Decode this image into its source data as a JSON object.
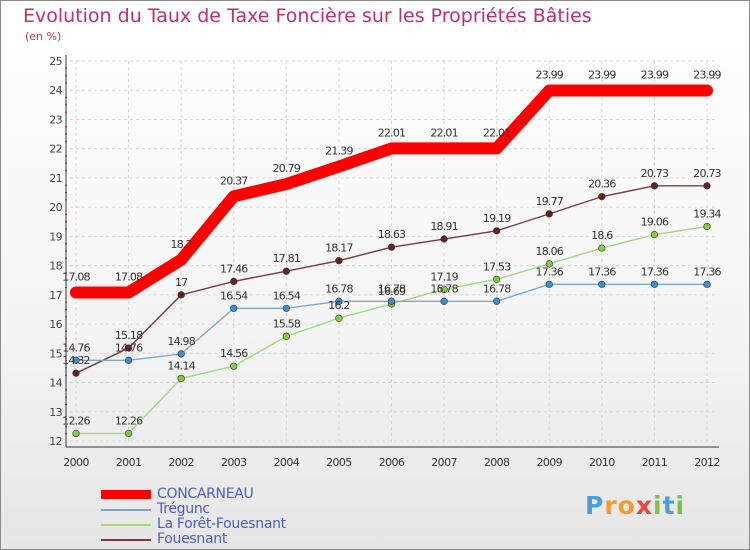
{
  "title": "Evolution du Taux de Taxe Foncière sur les Propriétés Bâties",
  "unit": "(en %)",
  "brand": {
    "letters": [
      "P",
      "r",
      "o",
      "x",
      "i",
      "t",
      "i"
    ],
    "colors": [
      "#4a9fd8",
      "#f29b2b",
      "#f29b2b",
      "#e84a3a",
      "#7cc24a",
      "#4a9fd8",
      "#7cc24a"
    ]
  },
  "chart_data": {
    "type": "line",
    "x": [
      "2000",
      "2001",
      "2002",
      "2003",
      "2004",
      "2005",
      "2006",
      "2007",
      "2008",
      "2009",
      "2010",
      "2011",
      "2012"
    ],
    "ylim": [
      12,
      25
    ],
    "yticks": [
      "12",
      "13",
      "14",
      "15",
      "16",
      "17",
      "18",
      "19",
      "20",
      "21",
      "22",
      "23",
      "24",
      "25"
    ],
    "grid": true,
    "legend_position": "bottom-left",
    "series": [
      {
        "name": "CONCARNEAU",
        "color": "#ff0000",
        "values": [
          17.08,
          17.08,
          18.2,
          20.37,
          20.79,
          21.39,
          22.01,
          22.01,
          22.01,
          23.99,
          23.99,
          23.99,
          23.99
        ],
        "labels": [
          "17.08",
          "17.08",
          "18.2",
          "20.37",
          "20.79",
          "21.39",
          "22.01",
          "22.01",
          "22.01",
          "23.99",
          "23.99",
          "23.99",
          "23.99"
        ]
      },
      {
        "name": "Trégunc",
        "color": "#7fa6c8",
        "marker": "#3b8fd6",
        "values": [
          14.76,
          14.76,
          14.98,
          16.54,
          16.54,
          16.78,
          16.78,
          16.78,
          16.78,
          17.36,
          17.36,
          17.36,
          17.36
        ],
        "labels": [
          "14.76",
          "14.76",
          "14.98",
          "16.54",
          "16.54",
          "16.78",
          "16.78",
          "16.78",
          "16.78",
          "17.36",
          "17.36",
          "17.36",
          "17.36"
        ]
      },
      {
        "name": "La Forêt-Fouesnant",
        "color": "#a6d87a",
        "marker": "#7cd13a",
        "values": [
          12.26,
          12.26,
          14.14,
          14.56,
          15.58,
          16.2,
          16.69,
          17.19,
          17.53,
          18.06,
          18.6,
          19.06,
          19.34
        ],
        "labels": [
          "12.26",
          "12.26",
          "14.14",
          "14.56",
          "15.58",
          "16.2",
          "16.69",
          "17.19",
          "17.53",
          "18.06",
          "18.6",
          "19.06",
          "19.34"
        ]
      },
      {
        "name": "Fouesnant",
        "color": "#7a3a3a",
        "marker": "#6b1f1f",
        "values": [
          14.32,
          15.18,
          17,
          17.46,
          17.81,
          18.17,
          18.63,
          18.91,
          19.19,
          19.77,
          20.36,
          20.73,
          20.73
        ],
        "labels": [
          "14.32",
          "15.18",
          "17",
          "17.46",
          "17.81",
          "18.17",
          "18.63",
          "18.91",
          "19.19",
          "19.77",
          "20.36",
          "20.73",
          "20.73"
        ]
      }
    ]
  }
}
